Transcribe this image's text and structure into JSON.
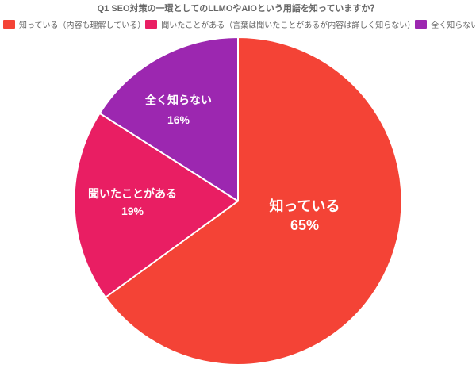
{
  "chart_data": {
    "type": "pie",
    "title": "Q1 SEO対策の一環としてのLLMOやAIOという用語を知っていますか？",
    "categories": [
      "知っている",
      "聞いたことがある",
      "全く知らない"
    ],
    "values": [
      65,
      19,
      16
    ],
    "value_suffix": "%",
    "colors": [
      "#F44336",
      "#E91E63",
      "#9C27B0"
    ],
    "slice_border_color": "#FFFFFF",
    "label_color": "#FFFFFF",
    "text_color": "#666666",
    "background_color": "#FFFFFF",
    "start_angle_deg": 0,
    "direction": "clockwise",
    "legend_position": "top",
    "legend": [
      {
        "label": "知っている（内容も理解している）",
        "color": "#F44336"
      },
      {
        "label": "聞いたことがある（言葉は聞いたことがあるが内容は詳しく知らない）",
        "color": "#E91E63"
      },
      {
        "label": "全く知らない",
        "color": "#9C27B0"
      }
    ]
  }
}
